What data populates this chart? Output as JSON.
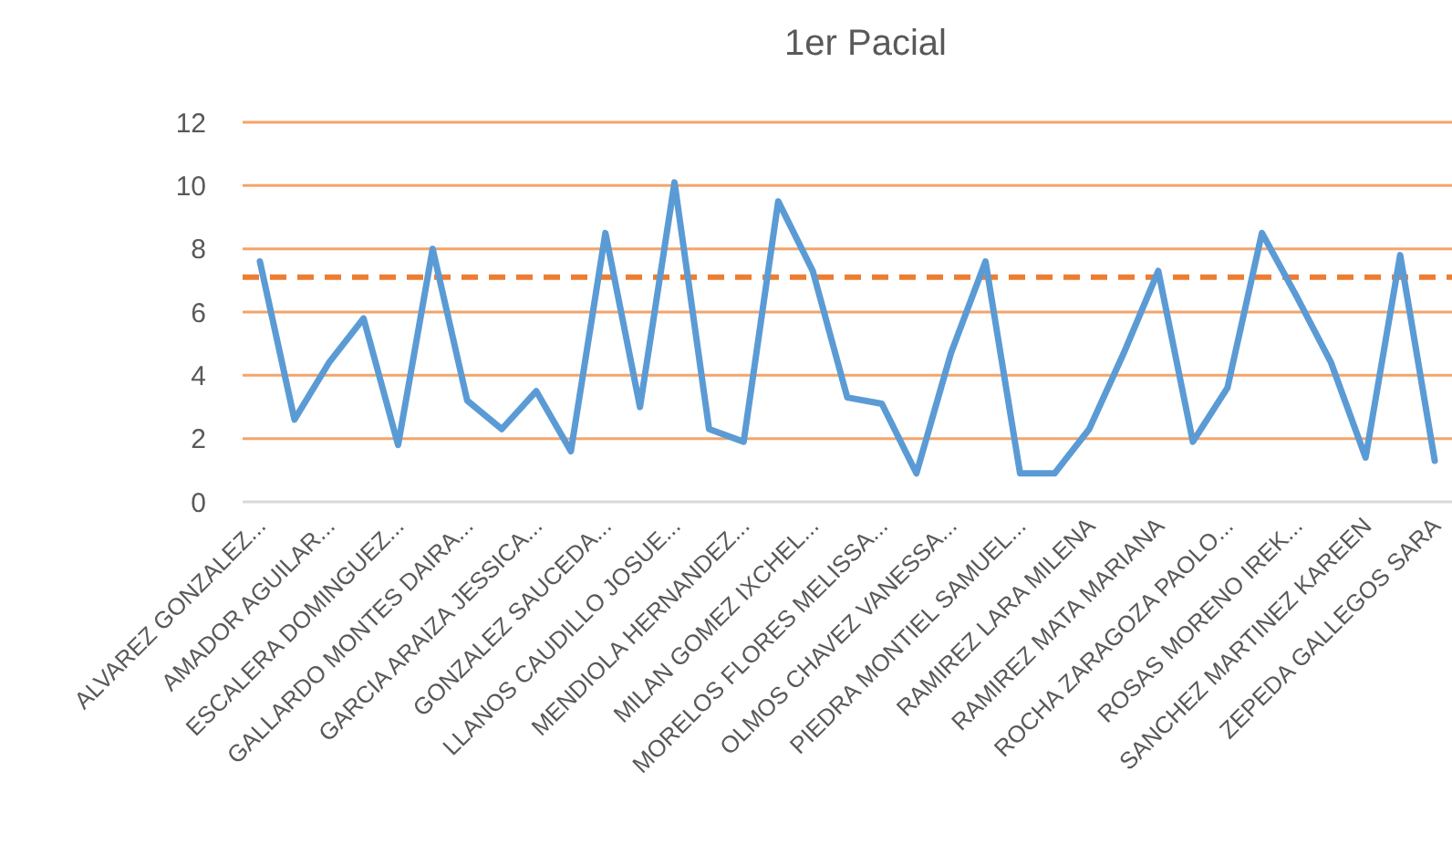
{
  "chart_data": {
    "type": "line",
    "title": "1er Pacial",
    "categories": [
      "ALVAREZ GONZALEZ...",
      null,
      "AMADOR AGUILAR...",
      null,
      "ESCALERA DOMINGUEZ...",
      null,
      "GALLARDO MONTES DAIRA...",
      null,
      "GARCIA ARAIZA JESSICA...",
      null,
      "GONZALEZ SAUCEDA...",
      null,
      "LLANOS CAUDILLO JOSUE...",
      null,
      "MENDIOLA HERNANDEZ...",
      null,
      "MILAN GOMEZ IXCHEL...",
      null,
      "MORELOS FLORES MELISSA...",
      null,
      "OLMOS CHAVEZ VANESSA...",
      null,
      "PIEDRA MONTIEL SAMUEL...",
      null,
      "RAMIREZ LARA MILENA",
      null,
      "RAMIREZ MATA MARIANA",
      null,
      "ROCHA ZARAGOZA PAOLO...",
      null,
      "ROSAS MORENO IREK...",
      null,
      "SANCHEZ MARTINEZ KAREEN",
      null,
      "ZEPEDA GALLEGOS SARA"
    ],
    "series": [
      {
        "color": "#5b9bd5",
        "values": [
          7.6,
          2.6,
          4.4,
          5.8,
          1.8,
          8.0,
          3.2,
          2.3,
          3.5,
          1.6,
          8.5,
          3.0,
          10.1,
          2.3,
          1.9,
          9.5,
          7.3,
          3.3,
          3.1,
          0.9,
          4.7,
          7.6,
          0.9,
          0.9,
          2.3,
          4.7,
          7.3,
          1.9,
          3.6,
          8.5,
          6.5,
          4.4,
          1.4,
          7.8,
          1.3
        ]
      }
    ],
    "ylim": [
      0,
      12
    ],
    "yticks": [
      0,
      2,
      4,
      6,
      8,
      10,
      12
    ],
    "grid": "y",
    "marker": "none",
    "line_style": "solid",
    "ref_lines": [
      {
        "axis": "y",
        "value": 7.1,
        "color": "#ed7d31",
        "line_style": "dashed"
      }
    ]
  }
}
